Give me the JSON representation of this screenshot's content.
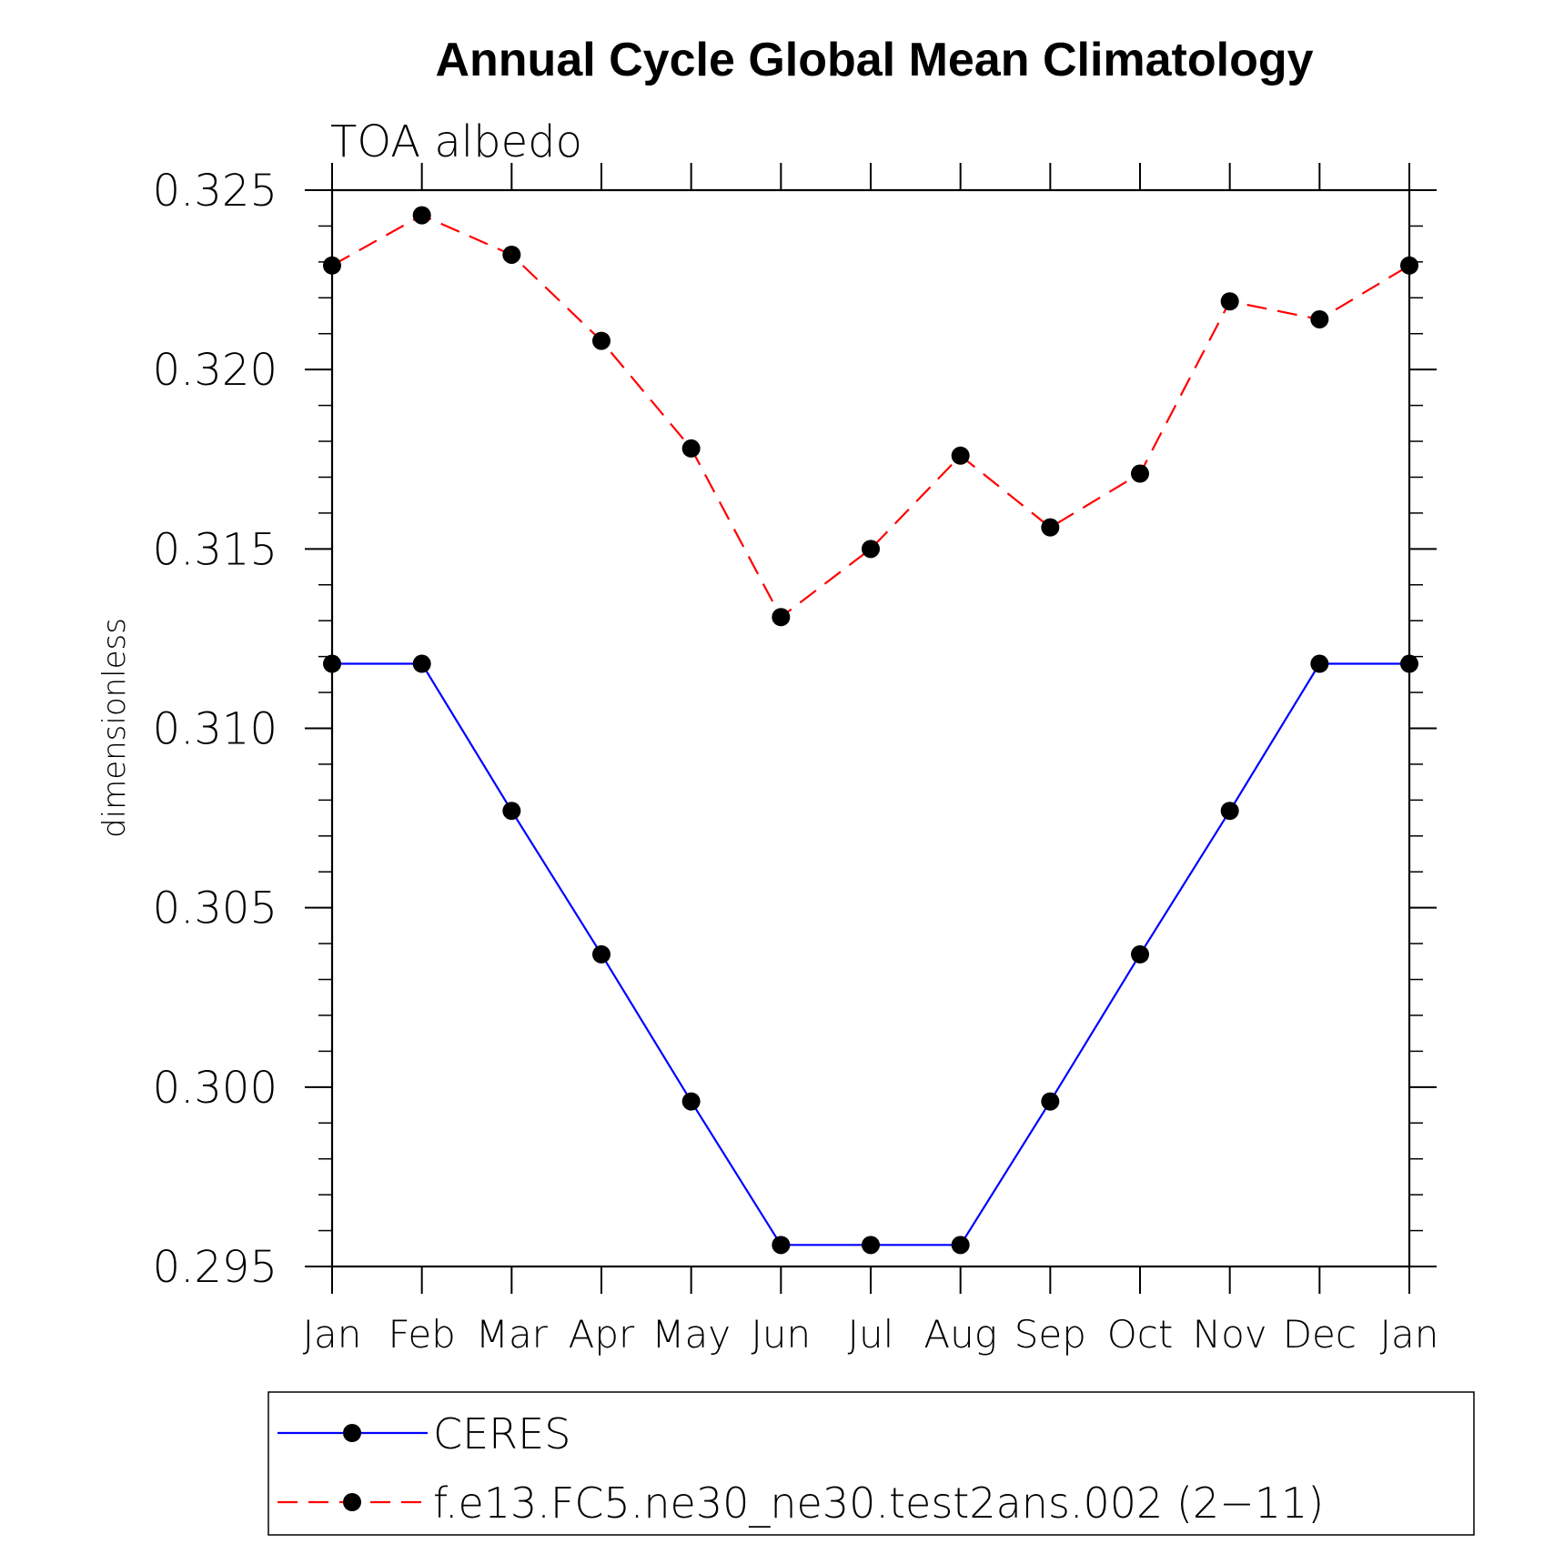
{
  "chart_data": {
    "type": "line",
    "title": "Annual Cycle Global Mean Climatology",
    "subtitle": "TOA albedo",
    "xlabel": "",
    "ylabel": "dimensionless",
    "categories": [
      "Jan",
      "Feb",
      "Mar",
      "Apr",
      "May",
      "Jun",
      "Jul",
      "Aug",
      "Sep",
      "Oct",
      "Nov",
      "Dec",
      "Jan"
    ],
    "ylim": [
      0.295,
      0.325
    ],
    "yticks": [
      "0.325",
      "0.320",
      "0.315",
      "0.310",
      "0.305",
      "0.300",
      "0.295"
    ],
    "ytick_values": [
      0.325,
      0.32,
      0.315,
      0.31,
      0.305,
      0.3,
      0.295
    ],
    "y_minor_step": 0.001,
    "legend_position": "bottom",
    "series": [
      {
        "name": "CERES",
        "color": "#0000ff",
        "dash": "solid",
        "marker": "filled-circle",
        "values": [
          0.3118,
          0.3118,
          0.3077,
          0.3037,
          0.2996,
          0.2956,
          0.2956,
          0.2956,
          0.2996,
          0.3037,
          0.3077,
          0.3118,
          0.3118
        ]
      },
      {
        "name": "f.e13.FC5.ne30_ne30.test2ans.002 (2−11)",
        "color": "#ff0000",
        "dash": "dashed",
        "marker": "filled-circle",
        "values": [
          0.3229,
          0.3243,
          0.3232,
          0.3208,
          0.3178,
          0.3131,
          0.315,
          0.3176,
          0.3156,
          0.3171,
          0.3219,
          0.3214,
          0.3229
        ]
      }
    ]
  }
}
